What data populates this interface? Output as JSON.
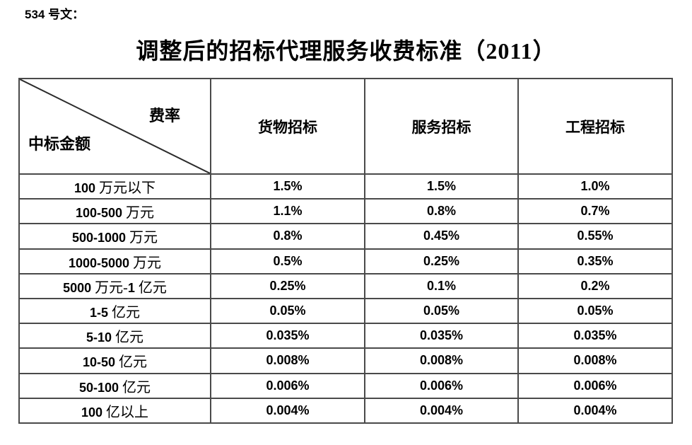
{
  "page": {
    "doc_label": "534 号文：",
    "title": "调整后的招标代理服务收费标准（2011）"
  },
  "table": {
    "corner": {
      "top_right": "费率",
      "bottom_left": "中标金额"
    },
    "columns": [
      "货物招标",
      "服务招标",
      "工程招标"
    ],
    "rows": [
      {
        "label": "100 万元以下",
        "values": [
          "1.5%",
          "1.5%",
          "1.0%"
        ]
      },
      {
        "label": "100-500 万元",
        "values": [
          "1.1%",
          "0.8%",
          "0.7%"
        ]
      },
      {
        "label": "500-1000 万元",
        "values": [
          "0.8%",
          "0.45%",
          "0.55%"
        ]
      },
      {
        "label": "1000-5000 万元",
        "values": [
          "0.5%",
          "0.25%",
          "0.35%"
        ]
      },
      {
        "label": "5000 万元-1 亿元",
        "values": [
          "0.25%",
          "0.1%",
          "0.2%"
        ]
      },
      {
        "label": "1-5 亿元",
        "values": [
          "0.05%",
          "0.05%",
          "0.05%"
        ]
      },
      {
        "label": "5-10 亿元",
        "values": [
          "0.035%",
          "0.035%",
          "0.035%"
        ]
      },
      {
        "label": "10-50 亿元",
        "values": [
          "0.008%",
          "0.008%",
          "0.008%"
        ]
      },
      {
        "label": "50-100 亿元",
        "values": [
          "0.006%",
          "0.006%",
          "0.006%"
        ]
      },
      {
        "label": "100 亿以上",
        "values": [
          "0.004%",
          "0.004%",
          "0.004%"
        ]
      }
    ]
  },
  "colors": {
    "text": "#000000",
    "border": "#4a4a4a",
    "background": "#ffffff"
  }
}
